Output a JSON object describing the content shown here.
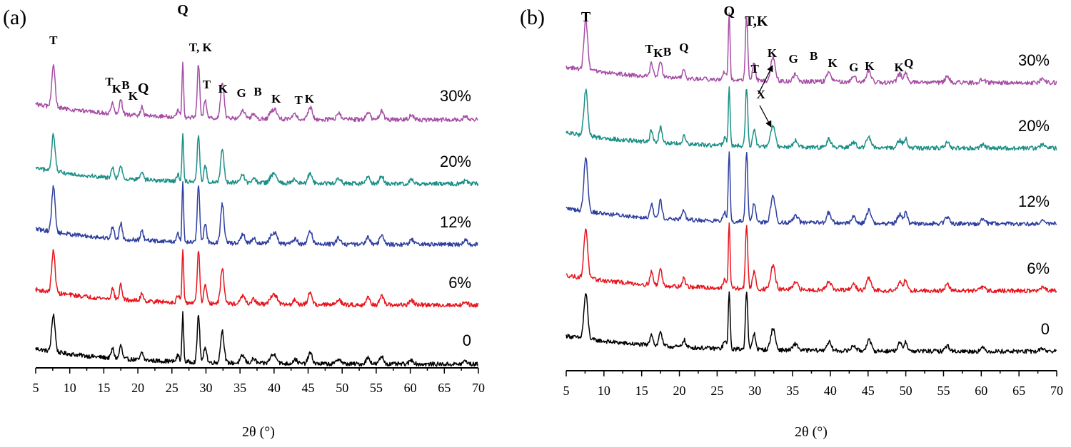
{
  "chart_data": [
    {
      "type": "line",
      "panel": "(a)",
      "xlabel": "2θ (°)",
      "ylabel": "",
      "xlim": [
        5,
        70
      ],
      "x_ticks": [
        5,
        10,
        15,
        20,
        25,
        30,
        35,
        40,
        45,
        50,
        55,
        60,
        65,
        70
      ],
      "legend": "series labels at right end of each trace",
      "series": [
        {
          "name": "0",
          "color": "#000000"
        },
        {
          "name": "6%",
          "color": "#e8141c"
        },
        {
          "name": "12%",
          "color": "#2f3fa0"
        },
        {
          "name": "20%",
          "color": "#1a8f86"
        },
        {
          "name": "30%",
          "color": "#a64ea6"
        }
      ],
      "peaks": [
        {
          "x": 7.6,
          "h": 70,
          "w": 0.25
        },
        {
          "x": 16.3,
          "h": 18,
          "w": 0.2
        },
        {
          "x": 17.5,
          "h": 25,
          "w": 0.2
        },
        {
          "x": 20.6,
          "h": 14,
          "w": 0.2
        },
        {
          "x": 25.9,
          "h": 12,
          "w": 0.2
        },
        {
          "x": 26.6,
          "h": 90,
          "w": 0.12
        },
        {
          "x": 28.9,
          "h": 90,
          "w": 0.18
        },
        {
          "x": 29.9,
          "h": 30,
          "w": 0.2
        },
        {
          "x": 32.4,
          "h": 60,
          "w": 0.25
        },
        {
          "x": 35.4,
          "h": 14,
          "w": 0.3
        },
        {
          "x": 37.0,
          "h": 8,
          "w": 0.3
        },
        {
          "x": 39.6,
          "h": 12,
          "w": 0.3
        },
        {
          "x": 40.2,
          "h": 14,
          "w": 0.3
        },
        {
          "x": 43.1,
          "h": 8,
          "w": 0.3
        },
        {
          "x": 45.3,
          "h": 20,
          "w": 0.3
        },
        {
          "x": 49.5,
          "h": 10,
          "w": 0.3
        },
        {
          "x": 53.8,
          "h": 12,
          "w": 0.3
        },
        {
          "x": 55.8,
          "h": 14,
          "w": 0.3
        },
        {
          "x": 60.2,
          "h": 8,
          "w": 0.3
        },
        {
          "x": 68.1,
          "h": 6,
          "w": 0.3
        }
      ],
      "annotations": [
        {
          "text": "T",
          "x": 7.6
        },
        {
          "text": "T",
          "x": 15.8
        },
        {
          "text": "K",
          "x": 16.9
        },
        {
          "text": "B",
          "x": 18.2
        },
        {
          "text": "K",
          "x": 19.3
        },
        {
          "text": "Q",
          "x": 20.8
        },
        {
          "text": "Q",
          "x": 26.6
        },
        {
          "text": "T, K",
          "x": 29.2
        },
        {
          "text": "T",
          "x": 30.1
        },
        {
          "text": "K",
          "x": 32.5
        },
        {
          "text": "G",
          "x": 35.2
        },
        {
          "text": "B",
          "x": 37.6
        },
        {
          "text": "K",
          "x": 40.3
        },
        {
          "text": "T",
          "x": 43.6
        },
        {
          "text": "K",
          "x": 45.2
        }
      ]
    },
    {
      "type": "line",
      "panel": "(b)",
      "xlabel": "2θ (°)",
      "ylabel": "",
      "xlim": [
        5,
        70
      ],
      "x_ticks": [
        5,
        10,
        15,
        20,
        25,
        30,
        35,
        40,
        45,
        50,
        55,
        60,
        65,
        70
      ],
      "legend": "series labels at right end of each trace",
      "series": [
        {
          "name": "0",
          "color": "#000000"
        },
        {
          "name": "6%",
          "color": "#e8141c"
        },
        {
          "name": "12%",
          "color": "#2f3fa0"
        },
        {
          "name": "20%",
          "color": "#1a8f86"
        },
        {
          "name": "30%",
          "color": "#a64ea6"
        }
      ],
      "peaks": [
        {
          "x": 7.6,
          "h": 85,
          "w": 0.25
        },
        {
          "x": 16.3,
          "h": 22,
          "w": 0.2
        },
        {
          "x": 17.5,
          "h": 28,
          "w": 0.2
        },
        {
          "x": 20.6,
          "h": 14,
          "w": 0.2
        },
        {
          "x": 26.0,
          "h": 14,
          "w": 0.2
        },
        {
          "x": 26.6,
          "h": 110,
          "w": 0.12
        },
        {
          "x": 28.9,
          "h": 110,
          "w": 0.15
        },
        {
          "x": 29.9,
          "h": 30,
          "w": 0.2
        },
        {
          "x": 32.4,
          "h": 40,
          "w": 0.3
        },
        {
          "x": 35.4,
          "h": 12,
          "w": 0.3
        },
        {
          "x": 39.8,
          "h": 16,
          "w": 0.3
        },
        {
          "x": 43.1,
          "h": 10,
          "w": 0.3
        },
        {
          "x": 45.1,
          "h": 20,
          "w": 0.3
        },
        {
          "x": 49.2,
          "h": 14,
          "w": 0.3
        },
        {
          "x": 50.0,
          "h": 18,
          "w": 0.2
        },
        {
          "x": 55.5,
          "h": 10,
          "w": 0.3
        },
        {
          "x": 60.2,
          "h": 6,
          "w": 0.3
        },
        {
          "x": 68.1,
          "h": 6,
          "w": 0.3
        }
      ],
      "annotations": [
        {
          "text": "T",
          "x": 7.6
        },
        {
          "text": "T",
          "x": 16.0
        },
        {
          "text": "K",
          "x": 17.2
        },
        {
          "text": "B",
          "x": 18.4
        },
        {
          "text": "Q",
          "x": 20.6
        },
        {
          "text": "Q",
          "x": 26.6
        },
        {
          "text": "T,K",
          "x": 30.2
        },
        {
          "text": "T",
          "x": 30.0
        },
        {
          "text": "K",
          "x": 32.3
        },
        {
          "text": "G",
          "x": 35.1
        },
        {
          "text": "B",
          "x": 37.8
        },
        {
          "text": "K",
          "x": 40.3
        },
        {
          "text": "G",
          "x": 43.1
        },
        {
          "text": "K",
          "x": 45.2
        },
        {
          "text": "K",
          "x": 49.1
        },
        {
          "text": "Q",
          "x": 50.4
        },
        {
          "text": "X",
          "x": 30.8
        }
      ]
    }
  ]
}
